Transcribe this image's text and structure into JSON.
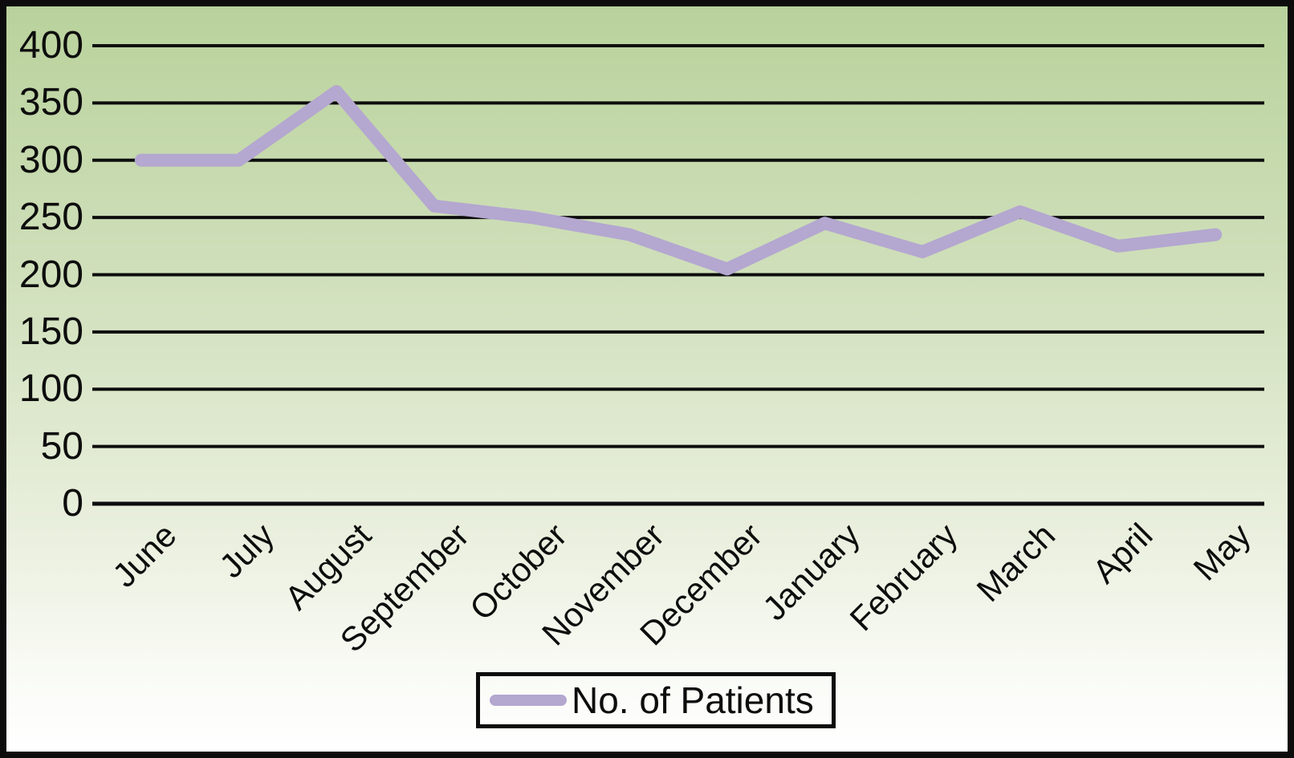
{
  "chart_data": {
    "type": "line",
    "title": "",
    "xlabel": "",
    "ylabel": "",
    "categories": [
      "June",
      "July",
      "August",
      "September",
      "October",
      "November",
      "December",
      "January",
      "February",
      "March",
      "April",
      "May"
    ],
    "series": [
      {
        "name": "No. of Patients",
        "values": [
          300,
          300,
          360,
          260,
          250,
          235,
          205,
          245,
          220,
          255,
          225,
          235
        ]
      }
    ],
    "ylim": [
      0,
      400
    ],
    "y_ticks": [
      400,
      350,
      300,
      250,
      200,
      150,
      100,
      50,
      0
    ],
    "grid": "horizontal",
    "legend_position": "bottom",
    "colors": {
      "line": "#b4a7d0",
      "gridline": "#0d0d0d",
      "axis": "#0d0d0d",
      "background_top": "#b9d29c",
      "background_bottom": "#ffffff",
      "border": "#0c0c0c",
      "text": "#0d0d0d"
    }
  }
}
